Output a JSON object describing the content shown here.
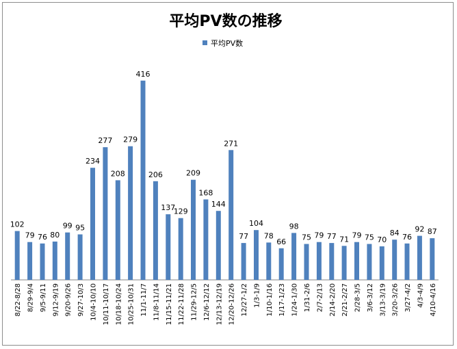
{
  "chart_data": {
    "type": "bar",
    "title": "平均PV数の推移",
    "xlabel": "",
    "ylabel": "",
    "ylim": [
      0,
      450
    ],
    "grid": false,
    "legend_position": "top-center",
    "bar_color": "#4f81bd",
    "categories": [
      "8/22-8/28",
      "8/29-9/4",
      "9/5-9/11",
      "9/12-9/19",
      "9/20-9/26",
      "9/27-10/3",
      "10/4-10/10",
      "10/11-10/17",
      "10/18-10/24",
      "10/25-10/31",
      "11/1-11/7",
      "11/8-11/14",
      "11/15-11/21",
      "11/22-11/28",
      "11/29-12/5",
      "12/6-12/12",
      "12/13-12/19",
      "12/20-12/26",
      "12/27-1/2",
      "1/3-1/9",
      "1/10-1/16",
      "1/17-1/23",
      "1/24-1/30",
      "1/31-2/6",
      "2/7-2/13",
      "2/14-2/20",
      "2/21-2/27",
      "2/28-3/5",
      "3/6-3/12",
      "3/13-3/19",
      "3/20-3/26",
      "3/27-4/2",
      "4/3-4/9",
      "4/10-4/16"
    ],
    "series": [
      {
        "name": "平均PV数",
        "values": [
          102,
          79,
          76,
          80,
          99,
          95,
          234,
          277,
          208,
          279,
          416,
          206,
          137,
          129,
          209,
          168,
          144,
          271,
          77,
          104,
          78,
          66,
          98,
          75,
          79,
          77,
          71,
          79,
          75,
          70,
          84,
          76,
          92,
          87
        ]
      }
    ]
  }
}
